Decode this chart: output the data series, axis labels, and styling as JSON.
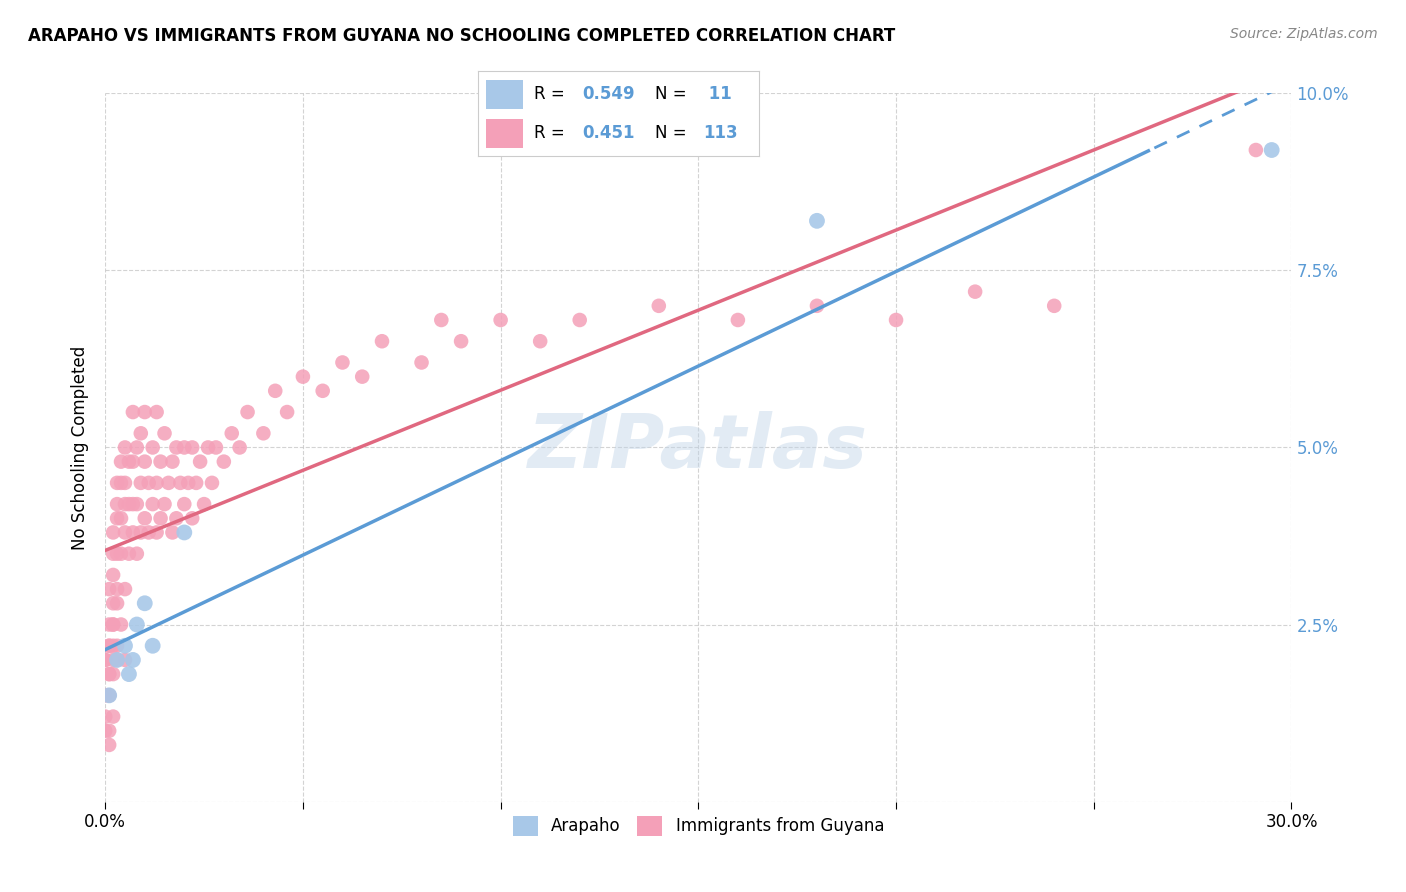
{
  "title": "ARAPAHO VS IMMIGRANTS FROM GUYANA NO SCHOOLING COMPLETED CORRELATION CHART",
  "source": "Source: ZipAtlas.com",
  "ylabel": "No Schooling Completed",
  "xmin": 0.0,
  "xmax": 0.3,
  "ymin": 0.0,
  "ymax": 0.1,
  "xticks": [
    0.0,
    0.05,
    0.1,
    0.15,
    0.2,
    0.25,
    0.3
  ],
  "yticks": [
    0.0,
    0.025,
    0.05,
    0.075,
    0.1
  ],
  "ytick_labels_right": [
    "",
    "2.5%",
    "5.0%",
    "7.5%",
    "10.0%"
  ],
  "watermark": "ZIPatlas",
  "color_arapaho": "#a8c8e8",
  "color_guyana": "#f4a0b8",
  "line_color_arapaho": "#5b9bd5",
  "line_color_guyana": "#e06880",
  "arapaho_x": [
    0.001,
    0.003,
    0.005,
    0.006,
    0.007,
    0.008,
    0.01,
    0.012,
    0.02,
    0.18,
    0.295
  ],
  "arapaho_y": [
    0.015,
    0.02,
    0.022,
    0.018,
    0.02,
    0.025,
    0.028,
    0.022,
    0.038,
    0.082,
    0.092
  ],
  "guyana_x": [
    0.0,
    0.001,
    0.001,
    0.001,
    0.002,
    0.002,
    0.002,
    0.002,
    0.003,
    0.003,
    0.003,
    0.003,
    0.003,
    0.004,
    0.004,
    0.004,
    0.004,
    0.005,
    0.005,
    0.005,
    0.005,
    0.005,
    0.006,
    0.006,
    0.006,
    0.007,
    0.007,
    0.007,
    0.007,
    0.008,
    0.008,
    0.008,
    0.009,
    0.009,
    0.009,
    0.01,
    0.01,
    0.01,
    0.011,
    0.011,
    0.012,
    0.012,
    0.013,
    0.013,
    0.013,
    0.014,
    0.014,
    0.015,
    0.015,
    0.016,
    0.017,
    0.017,
    0.018,
    0.018,
    0.019,
    0.02,
    0.02,
    0.021,
    0.022,
    0.022,
    0.023,
    0.024,
    0.025,
    0.026,
    0.027,
    0.028,
    0.03,
    0.032,
    0.034,
    0.036,
    0.04,
    0.043,
    0.046,
    0.05,
    0.055,
    0.06,
    0.065,
    0.07,
    0.08,
    0.085,
    0.09,
    0.1,
    0.11,
    0.12,
    0.14,
    0.16,
    0.18,
    0.2,
    0.22,
    0.24,
    0.0,
    0.001,
    0.001,
    0.002,
    0.002,
    0.003,
    0.004,
    0.005,
    0.0,
    0.001,
    0.002,
    0.001,
    0.003,
    0.002,
    0.0,
    0.001,
    0.002,
    0.0,
    0.001,
    0.291,
    0.003,
    0.002,
    0.001
  ],
  "guyana_y": [
    0.02,
    0.025,
    0.03,
    0.022,
    0.028,
    0.032,
    0.035,
    0.038,
    0.03,
    0.035,
    0.04,
    0.042,
    0.045,
    0.035,
    0.04,
    0.045,
    0.048,
    0.03,
    0.038,
    0.042,
    0.045,
    0.05,
    0.035,
    0.042,
    0.048,
    0.038,
    0.042,
    0.048,
    0.055,
    0.035,
    0.042,
    0.05,
    0.038,
    0.045,
    0.052,
    0.04,
    0.048,
    0.055,
    0.038,
    0.045,
    0.042,
    0.05,
    0.038,
    0.045,
    0.055,
    0.04,
    0.048,
    0.042,
    0.052,
    0.045,
    0.038,
    0.048,
    0.04,
    0.05,
    0.045,
    0.042,
    0.05,
    0.045,
    0.04,
    0.05,
    0.045,
    0.048,
    0.042,
    0.05,
    0.045,
    0.05,
    0.048,
    0.052,
    0.05,
    0.055,
    0.052,
    0.058,
    0.055,
    0.06,
    0.058,
    0.062,
    0.06,
    0.065,
    0.062,
    0.068,
    0.065,
    0.068,
    0.065,
    0.068,
    0.07,
    0.068,
    0.07,
    0.068,
    0.072,
    0.07,
    0.02,
    0.018,
    0.022,
    0.025,
    0.02,
    0.022,
    0.025,
    0.02,
    0.015,
    0.018,
    0.022,
    0.015,
    0.02,
    0.012,
    0.01,
    0.015,
    0.018,
    0.012,
    0.008,
    0.092,
    0.028,
    0.025,
    0.01
  ]
}
